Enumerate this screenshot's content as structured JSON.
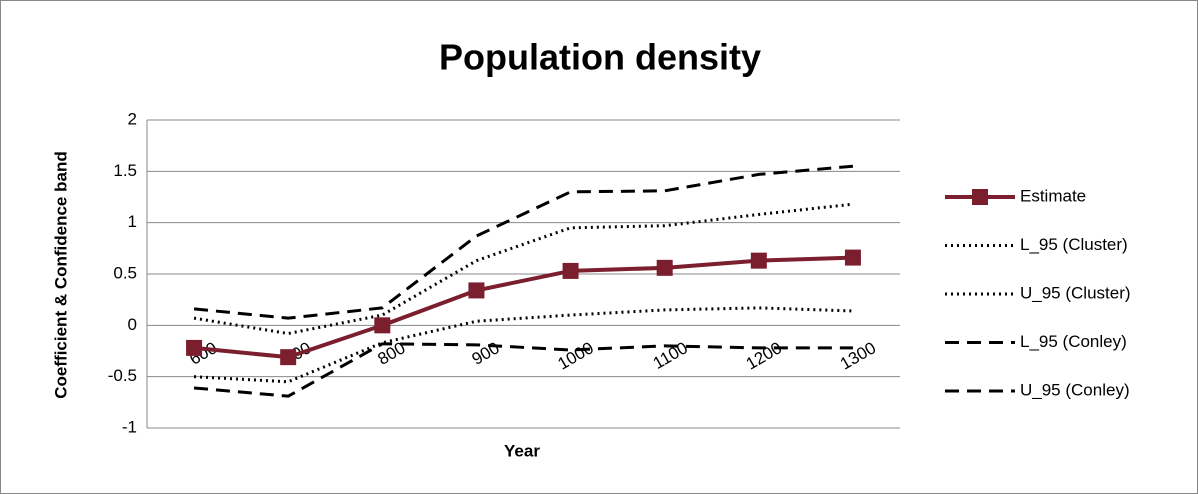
{
  "chart_data": {
    "type": "line",
    "title": "Population density",
    "x_label": "Year",
    "y_label": "Coefficient & Confidence  band",
    "categories": [
      "600",
      "700",
      "800",
      "900",
      "1000",
      "1100",
      "1200",
      "1300"
    ],
    "ylim": [
      -1,
      2
    ],
    "yticks": [
      -1,
      -0.5,
      0,
      0.5,
      1,
      1.5,
      2
    ],
    "grid": true,
    "legend": "right",
    "series": [
      {
        "name": "Estimate",
        "color": "#7b1f2e",
        "style": "solid",
        "marker": "square",
        "values": [
          -0.22,
          -0.31,
          0,
          0.34,
          0.53,
          0.56,
          0.63,
          0.66
        ]
      },
      {
        "name": "L_95 (Cluster)",
        "color": "#000000",
        "style": "dotted",
        "values": [
          -0.5,
          -0.55,
          -0.17,
          0.04,
          0.1,
          0.15,
          0.17,
          0.14
        ]
      },
      {
        "name": "U_95 (Cluster)",
        "color": "#000000",
        "style": "dotted",
        "values": [
          0.07,
          -0.08,
          0.1,
          0.63,
          0.95,
          0.97,
          1.08,
          1.18
        ]
      },
      {
        "name": "L_95 (Conley)",
        "color": "#000000",
        "style": "dashed",
        "values": [
          -0.61,
          -0.69,
          -0.18,
          -0.19,
          -0.24,
          -0.2,
          -0.22,
          -0.22
        ]
      },
      {
        "name": "U_95 (Conley)",
        "color": "#000000",
        "style": "dashed",
        "values": [
          0.16,
          0.07,
          0.17,
          0.87,
          1.3,
          1.31,
          1.47,
          1.55
        ]
      }
    ]
  }
}
